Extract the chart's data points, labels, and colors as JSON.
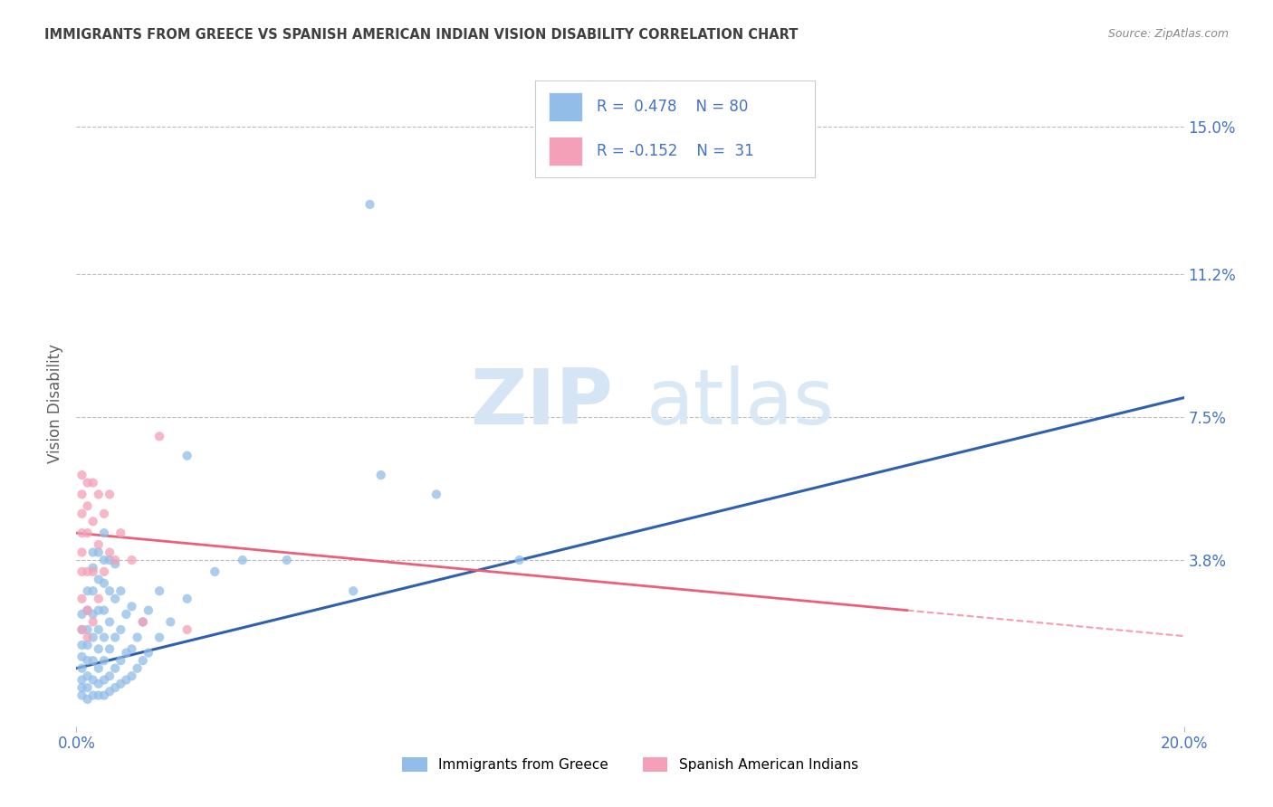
{
  "title": "IMMIGRANTS FROM GREECE VS SPANISH AMERICAN INDIAN VISION DISABILITY CORRELATION CHART",
  "source": "Source: ZipAtlas.com",
  "ylabel": "Vision Disability",
  "xlim": [
    0.0,
    0.2
  ],
  "ylim": [
    -0.005,
    0.162
  ],
  "ytick_labels_right": [
    "15.0%",
    "11.2%",
    "7.5%",
    "3.8%"
  ],
  "ytick_values_right": [
    0.15,
    0.112,
    0.075,
    0.038
  ],
  "R_blue": 0.478,
  "N_blue": 80,
  "R_pink": -0.152,
  "N_pink": 31,
  "legend_label_blue": "Immigrants from Greece",
  "legend_label_pink": "Spanish American Indians",
  "blue_color": "#92BDE8",
  "pink_color": "#F4A0B8",
  "blue_line_color": "#2F5FAF",
  "pink_line_color": "#E8607A",
  "title_color": "#404040",
  "axis_label_color": "#4472C4",
  "background_color": "#FFFFFF",
  "grid_color": "#BBBBBB",
  "blue_scatter": [
    [
      0.001,
      0.003
    ],
    [
      0.001,
      0.005
    ],
    [
      0.001,
      0.007
    ],
    [
      0.001,
      0.01
    ],
    [
      0.001,
      0.013
    ],
    [
      0.001,
      0.016
    ],
    [
      0.001,
      0.02
    ],
    [
      0.001,
      0.024
    ],
    [
      0.002,
      0.002
    ],
    [
      0.002,
      0.005
    ],
    [
      0.002,
      0.008
    ],
    [
      0.002,
      0.012
    ],
    [
      0.002,
      0.016
    ],
    [
      0.002,
      0.02
    ],
    [
      0.002,
      0.025
    ],
    [
      0.002,
      0.03
    ],
    [
      0.003,
      0.003
    ],
    [
      0.003,
      0.007
    ],
    [
      0.003,
      0.012
    ],
    [
      0.003,
      0.018
    ],
    [
      0.003,
      0.024
    ],
    [
      0.003,
      0.03
    ],
    [
      0.003,
      0.036
    ],
    [
      0.003,
      0.04
    ],
    [
      0.004,
      0.003
    ],
    [
      0.004,
      0.006
    ],
    [
      0.004,
      0.01
    ],
    [
      0.004,
      0.015
    ],
    [
      0.004,
      0.02
    ],
    [
      0.004,
      0.025
    ],
    [
      0.004,
      0.033
    ],
    [
      0.004,
      0.04
    ],
    [
      0.005,
      0.003
    ],
    [
      0.005,
      0.007
    ],
    [
      0.005,
      0.012
    ],
    [
      0.005,
      0.018
    ],
    [
      0.005,
      0.025
    ],
    [
      0.005,
      0.032
    ],
    [
      0.005,
      0.038
    ],
    [
      0.005,
      0.045
    ],
    [
      0.006,
      0.004
    ],
    [
      0.006,
      0.008
    ],
    [
      0.006,
      0.015
    ],
    [
      0.006,
      0.022
    ],
    [
      0.006,
      0.03
    ],
    [
      0.006,
      0.038
    ],
    [
      0.007,
      0.005
    ],
    [
      0.007,
      0.01
    ],
    [
      0.007,
      0.018
    ],
    [
      0.007,
      0.028
    ],
    [
      0.007,
      0.037
    ],
    [
      0.008,
      0.006
    ],
    [
      0.008,
      0.012
    ],
    [
      0.008,
      0.02
    ],
    [
      0.008,
      0.03
    ],
    [
      0.009,
      0.007
    ],
    [
      0.009,
      0.014
    ],
    [
      0.009,
      0.024
    ],
    [
      0.01,
      0.008
    ],
    [
      0.01,
      0.015
    ],
    [
      0.01,
      0.026
    ],
    [
      0.011,
      0.01
    ],
    [
      0.011,
      0.018
    ],
    [
      0.012,
      0.012
    ],
    [
      0.012,
      0.022
    ],
    [
      0.013,
      0.014
    ],
    [
      0.013,
      0.025
    ],
    [
      0.015,
      0.018
    ],
    [
      0.015,
      0.03
    ],
    [
      0.017,
      0.022
    ],
    [
      0.02,
      0.028
    ],
    [
      0.025,
      0.035
    ],
    [
      0.03,
      0.038
    ],
    [
      0.038,
      0.038
    ],
    [
      0.05,
      0.03
    ],
    [
      0.055,
      0.06
    ],
    [
      0.065,
      0.055
    ],
    [
      0.08,
      0.038
    ],
    [
      0.053,
      0.13
    ],
    [
      0.02,
      0.065
    ]
  ],
  "pink_scatter": [
    [
      0.001,
      0.02
    ],
    [
      0.001,
      0.028
    ],
    [
      0.001,
      0.035
    ],
    [
      0.001,
      0.04
    ],
    [
      0.001,
      0.045
    ],
    [
      0.001,
      0.05
    ],
    [
      0.001,
      0.055
    ],
    [
      0.001,
      0.06
    ],
    [
      0.002,
      0.018
    ],
    [
      0.002,
      0.025
    ],
    [
      0.002,
      0.035
    ],
    [
      0.002,
      0.045
    ],
    [
      0.002,
      0.052
    ],
    [
      0.002,
      0.058
    ],
    [
      0.003,
      0.022
    ],
    [
      0.003,
      0.035
    ],
    [
      0.003,
      0.048
    ],
    [
      0.003,
      0.058
    ],
    [
      0.004,
      0.028
    ],
    [
      0.004,
      0.042
    ],
    [
      0.004,
      0.055
    ],
    [
      0.005,
      0.035
    ],
    [
      0.005,
      0.05
    ],
    [
      0.006,
      0.04
    ],
    [
      0.006,
      0.055
    ],
    [
      0.007,
      0.038
    ],
    [
      0.008,
      0.045
    ],
    [
      0.01,
      0.038
    ],
    [
      0.012,
      0.022
    ],
    [
      0.015,
      0.07
    ],
    [
      0.02,
      0.02
    ]
  ]
}
